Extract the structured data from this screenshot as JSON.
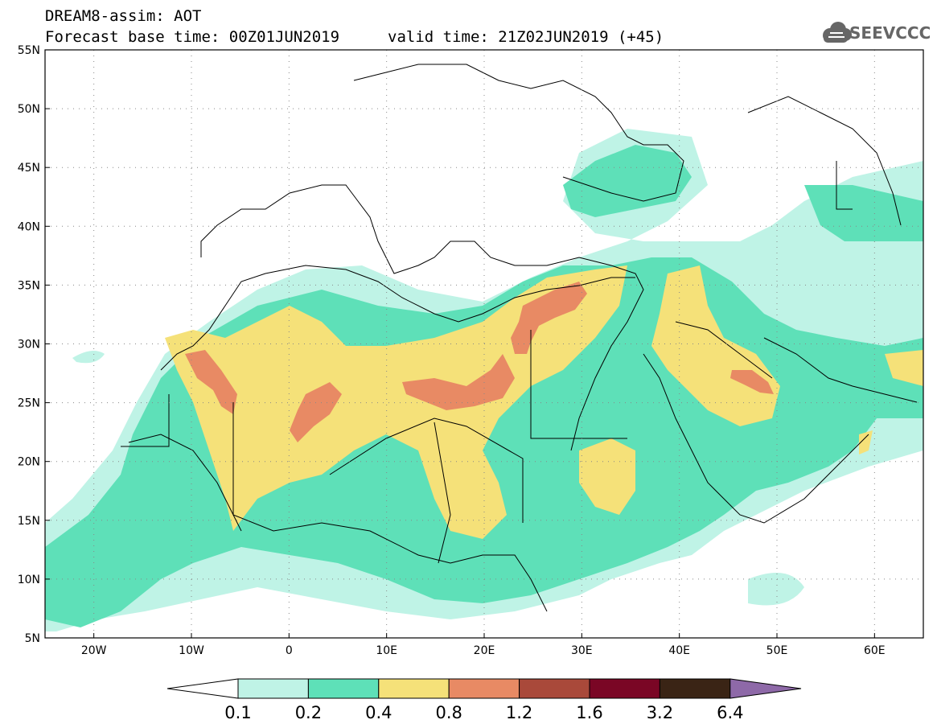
{
  "header": {
    "model_title": "DREAM8-assim: AOT",
    "base_time": "Forecast base time: 00Z01JUN2019",
    "valid_time": "valid time: 21Z02JUN2019 (+45)",
    "logo_text": "SEEVCCC",
    "logo_icon": "cloud-icon"
  },
  "map": {
    "lon_range": [
      -25,
      65
    ],
    "lat_range": [
      5,
      55
    ],
    "lat_ticks": [
      "5N",
      "10N",
      "15N",
      "20N",
      "25N",
      "30N",
      "35N",
      "40N",
      "45N",
      "50N",
      "55N"
    ],
    "lon_ticks": [
      "20W",
      "10W",
      "0",
      "10E",
      "20E",
      "30E",
      "40E",
      "50E",
      "60E"
    ],
    "lat_values": [
      5,
      10,
      15,
      20,
      25,
      30,
      35,
      40,
      45,
      50,
      55
    ],
    "lon_values": [
      -20,
      -10,
      0,
      10,
      20,
      30,
      40,
      50,
      60
    ]
  },
  "colorbar": {
    "labels": [
      "0.1",
      "0.2",
      "0.4",
      "0.8",
      "1.2",
      "1.6",
      "3.2",
      "6.4"
    ],
    "colors": [
      "#ffffff",
      "#bff3e6",
      "#5ee0b8",
      "#f5e179",
      "#e88a64",
      "#a9493a",
      "#7a0625",
      "#3a2415",
      "#8e69a8"
    ]
  },
  "palette": {
    "lvl1": "#bff3e6",
    "lvl2": "#5ee0b8",
    "lvl3": "#f5e179",
    "lvl4": "#e88a64",
    "lvl5": "#a9493a"
  }
}
